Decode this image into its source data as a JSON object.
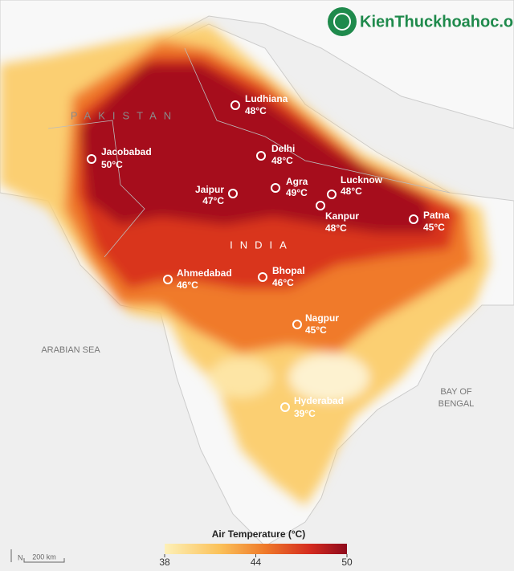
{
  "watermark": "KienThuckhoahoc.org",
  "regions": [
    "PAKISTAN",
    "INDIA"
  ],
  "seas": [
    "ARABIAN SEA",
    "BAY OF",
    "BENGAL"
  ],
  "cities": [
    {
      "name": "Ludhiana",
      "temp": "48°C"
    },
    {
      "name": "Jacobabad",
      "temp": "50°C"
    },
    {
      "name": "Delhi",
      "temp": "48°C"
    },
    {
      "name": "Jaipur",
      "temp": "47°C"
    },
    {
      "name": "Agra",
      "temp": "49°C"
    },
    {
      "name": "Lucknow",
      "temp": "48°C"
    },
    {
      "name": "Kanpur",
      "temp": "48°C"
    },
    {
      "name": "Patna",
      "temp": "45°C"
    },
    {
      "name": "Ahmedabad",
      "temp": "46°C"
    },
    {
      "name": "Bhopal",
      "temp": "46°C"
    },
    {
      "name": "Nagpur",
      "temp": "45°C"
    },
    {
      "name": "Hyderabad",
      "temp": "39°C"
    }
  ],
  "legend": {
    "title": "Air Temperature (°C)",
    "lim": [
      38,
      50
    ],
    "ticks": [
      38,
      44,
      50
    ]
  },
  "scale_bar": "200 km",
  "north": "N"
}
